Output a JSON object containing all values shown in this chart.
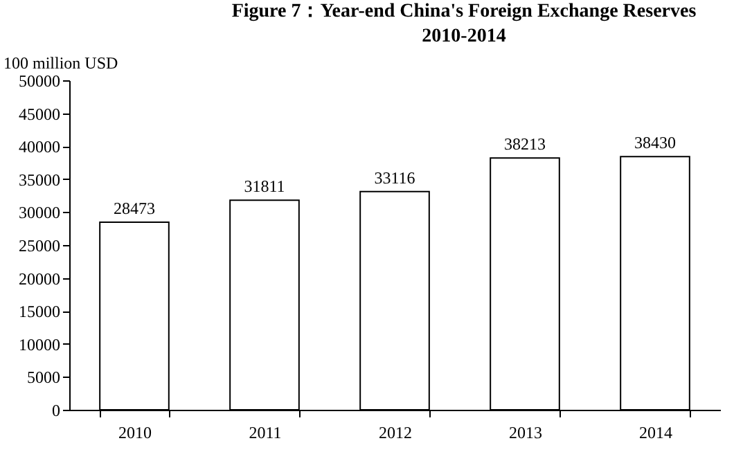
{
  "chart_data": {
    "type": "bar",
    "title": "Figure 7：Year-end China's Foreign Exchange Reserves",
    "subtitle": "2010-2014",
    "ylabel": "100 million USD",
    "categories": [
      "2010",
      "2011",
      "2012",
      "2013",
      "2014"
    ],
    "values": [
      28473,
      31811,
      33116,
      38213,
      38430
    ],
    "color": "#ffffff",
    "data_labels": true,
    "ylim": [
      0,
      50000
    ],
    "yticks": [
      0,
      5000,
      10000,
      15000,
      20000,
      25000,
      30000,
      35000,
      40000,
      45000,
      50000
    ]
  }
}
